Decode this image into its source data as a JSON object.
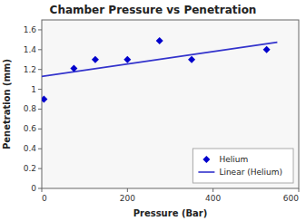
{
  "chart_data": {
    "type": "scatter",
    "title": "Chamber Pressure vs Penetration",
    "x_label": "Pressure (Bar)",
    "y_label": "Penetration (mm)",
    "series": [
      {
        "name": "Helium",
        "type": "scatter",
        "marker": "diamond",
        "color": "#0000CC",
        "x": [
          5,
          75,
          125,
          200,
          275,
          350,
          525
        ],
        "values": [
          0.9,
          1.21,
          1.3,
          1.3,
          1.49,
          1.3,
          1.4
        ]
      },
      {
        "name": "Linear (Helium)",
        "type": "line",
        "line_style": "solid",
        "color": "#3333CC",
        "x": [
          0,
          550
        ],
        "values": [
          1.13,
          1.475
        ]
      }
    ],
    "xlim": [
      0,
      600
    ],
    "ylim": [
      0,
      1.7
    ],
    "xticks": [
      0,
      200,
      400,
      600
    ],
    "yticks": [
      0,
      0.2,
      0.4,
      0.6,
      0.8,
      1,
      1.2,
      1.4,
      1.6
    ],
    "grid": false,
    "legend": "lower right"
  }
}
